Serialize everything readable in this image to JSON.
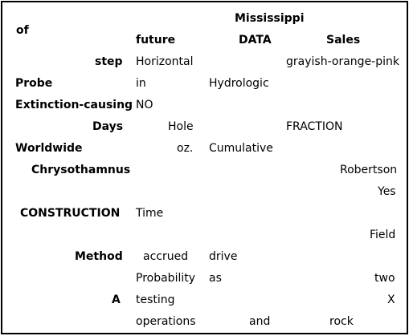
{
  "header": {
    "corner": "of",
    "top_group": "Mississippi",
    "columns": [
      "future",
      "DATA",
      "Sales"
    ]
  },
  "rows": [
    {
      "label": "step",
      "cells": [
        "Horizontal",
        "",
        "grayish-orange-pink"
      ]
    },
    {
      "label": "Probe",
      "cells": [
        "in",
        "Hydrologic",
        ""
      ]
    },
    {
      "label": "Extinction-causing",
      "cells": [
        "NO",
        "",
        ""
      ]
    },
    {
      "label": "Days",
      "cells": [
        "Hole",
        "",
        "FRACTION"
      ]
    },
    {
      "label": "Worldwide",
      "cells": [
        "oz.",
        "Cumulative",
        ""
      ]
    },
    {
      "label": "Chrysothamnus",
      "cells": [
        "",
        "",
        "Robertson"
      ]
    },
    {
      "label": "",
      "cells": [
        "",
        "",
        "Yes"
      ]
    },
    {
      "label": "CONSTRUCTION",
      "cells": [
        "Time",
        "",
        ""
      ]
    },
    {
      "label": "",
      "cells": [
        "",
        "",
        "Field"
      ]
    },
    {
      "label": "Method",
      "cells": [
        "accrued",
        "drive",
        ""
      ]
    },
    {
      "label": "",
      "cells": [
        "Probability",
        "as",
        "two"
      ]
    },
    {
      "label": "A",
      "cells": [
        "testing",
        "",
        "X"
      ]
    },
    {
      "label": "",
      "cells": [
        "operations",
        "and",
        "rock"
      ]
    }
  ]
}
